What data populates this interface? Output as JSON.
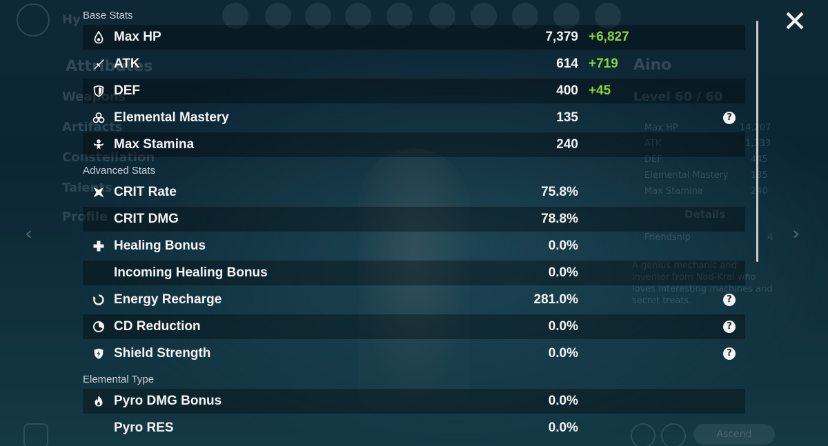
{
  "background": {
    "header_partial": "Hy",
    "menu": [
      "Attributes",
      "Weapons",
      "Artifacts",
      "Constellation",
      "Talents",
      "Profile"
    ],
    "character_name": "Aino",
    "level": "Level 60 / 60",
    "mini_stats": [
      {
        "label": "Max HP",
        "value": "14,207"
      },
      {
        "label": "ATK",
        "value": "1,333"
      },
      {
        "label": "DEF",
        "value": "445"
      },
      {
        "label": "Elemental Mastery",
        "value": "135"
      },
      {
        "label": "Max Stamina",
        "value": "240"
      }
    ],
    "details_label": "Details",
    "friendship_label": "Friendship",
    "friendship_level": "4",
    "description": "A genius mechanic and inventor from Nod-Krai who loves interesting machines and secret treats.",
    "ascend_label": "Ascend"
  },
  "base_stats": {
    "title": "Base Stats",
    "rows": [
      {
        "name": "Max HP",
        "value": "7,379",
        "bonus": "+6,827",
        "icon": "hp-drop-icon"
      },
      {
        "name": "ATK",
        "value": "614",
        "bonus": "+719",
        "icon": "sword-icon"
      },
      {
        "name": "DEF",
        "value": "400",
        "bonus": "+45",
        "icon": "shield-icon"
      },
      {
        "name": "Elemental Mastery",
        "value": "135",
        "bonus": "",
        "icon": "mastery-icon",
        "help": "?"
      },
      {
        "name": "Max Stamina",
        "value": "240",
        "bonus": "",
        "icon": "stamina-icon"
      }
    ]
  },
  "advanced_stats": {
    "title": "Advanced Stats",
    "rows": [
      {
        "name": "CRIT Rate",
        "value": "75.8%",
        "icon": "crit-icon"
      },
      {
        "name": "CRIT DMG",
        "value": "78.8%"
      },
      {
        "name": "Healing Bonus",
        "value": "0.0%",
        "icon": "healing-cross-icon"
      },
      {
        "name": "Incoming Healing Bonus",
        "value": "0.0%"
      },
      {
        "name": "Energy Recharge",
        "value": "281.0%",
        "icon": "energy-recharge-icon",
        "help": "?"
      },
      {
        "name": "CD Reduction",
        "value": "0.0%",
        "icon": "cd-reduction-icon",
        "help": "?"
      },
      {
        "name": "Shield Strength",
        "value": "0.0%",
        "icon": "shield-strength-icon",
        "help": "?"
      }
    ]
  },
  "elemental_type": {
    "title": "Elemental Type",
    "rows": [
      {
        "name": "Pyro DMG Bonus",
        "value": "0.0%",
        "icon": "pyro-icon"
      },
      {
        "name": "Pyro RES",
        "value": "0.0%"
      }
    ]
  },
  "colors": {
    "bonus_green": "#8bd43c",
    "text_white": "#f4f4f4",
    "section_gray": "#c8d2da"
  }
}
